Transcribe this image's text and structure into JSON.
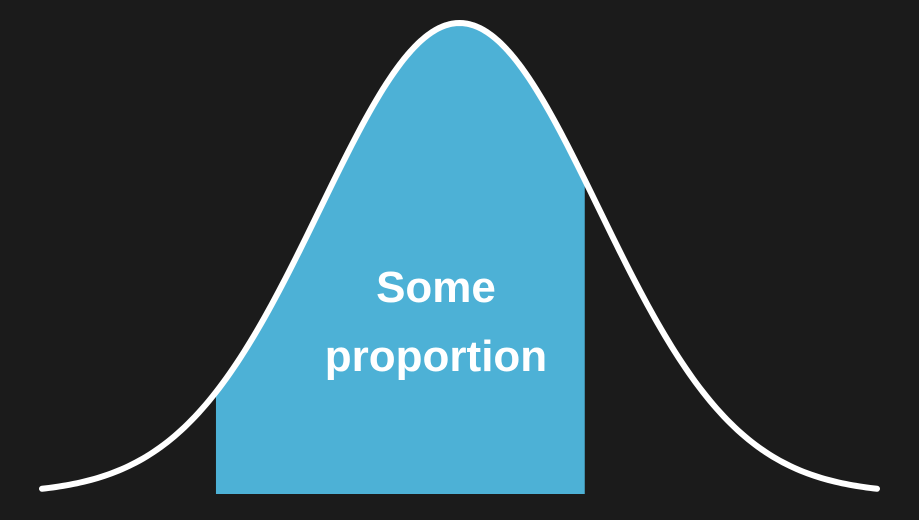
{
  "diagram": {
    "region_label_lines": [
      "Some",
      "proportion"
    ],
    "colors": {
      "background": "#1b1b1b",
      "curve": "#ffffff",
      "shaded_region": "#4db1d6",
      "label": "#ffffff"
    },
    "distribution": {
      "mean": 0,
      "sd": 1,
      "x_min": -3,
      "x_max": 3,
      "shade_from": -1.75,
      "shade_to": 0.9
    }
  }
}
